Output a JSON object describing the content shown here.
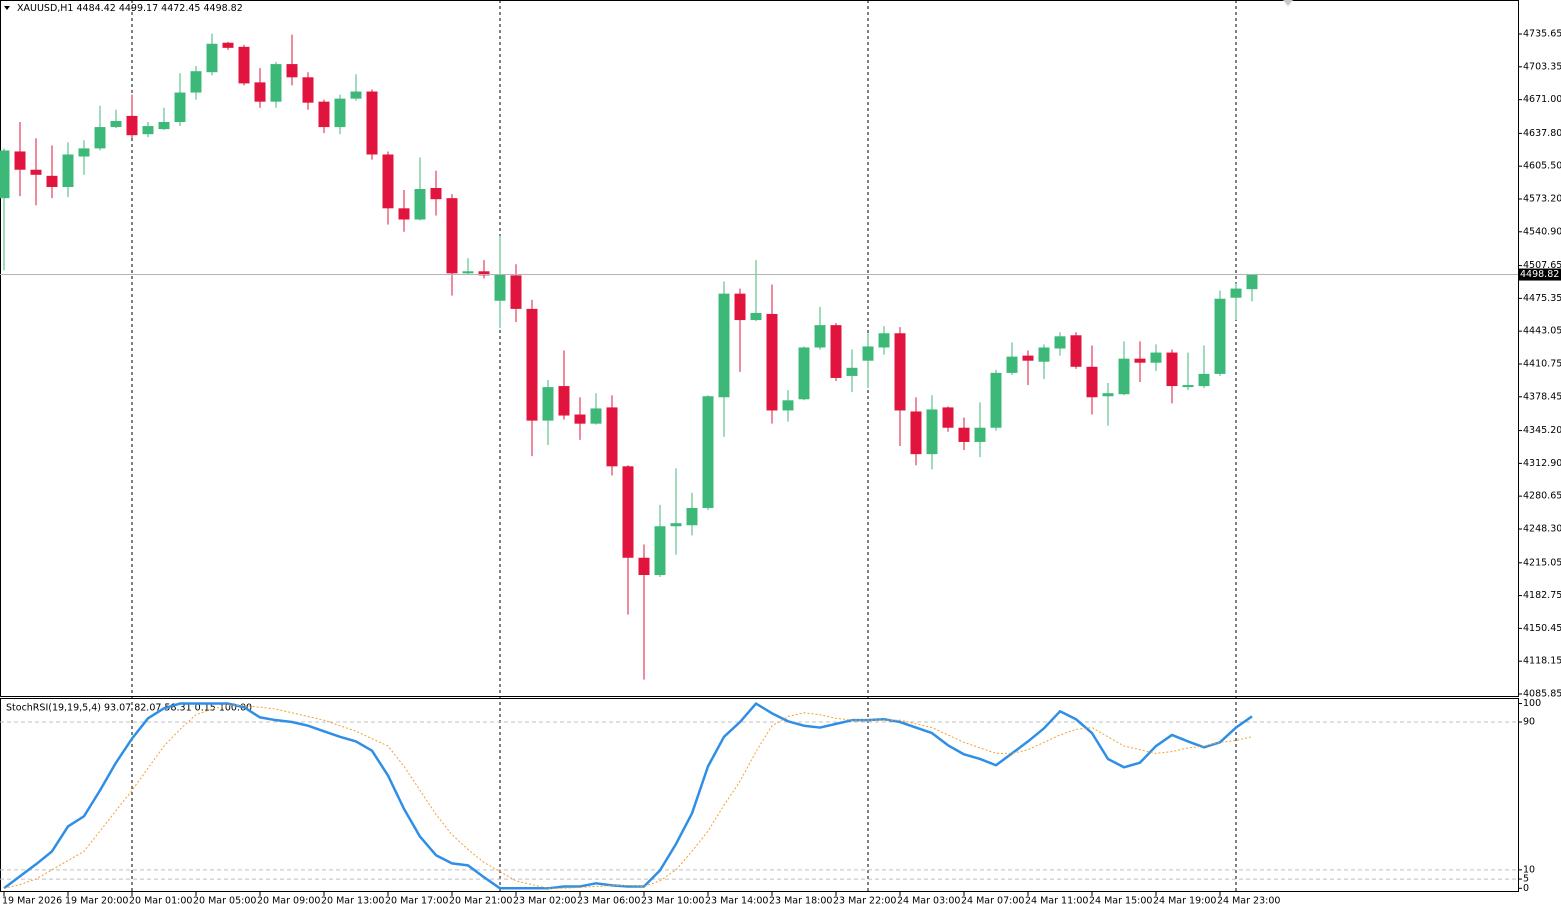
{
  "chart_data": [
    {
      "type": "candlestick",
      "symbol": "XAUUSD,H1",
      "categories": [
        "19 Mar 2026",
        null,
        null,
        null,
        "19 Mar 20:00",
        null,
        null,
        null,
        "20 Mar 01:00",
        null,
        null,
        null,
        "20 Mar 05:00",
        null,
        null,
        null,
        "20 Mar 09:00",
        null,
        null,
        null,
        "20 Mar 13:00",
        null,
        null,
        null,
        "20 Mar 17:00",
        null,
        null,
        null,
        "20 Mar 21:00",
        null,
        null,
        null,
        "23 Mar 02:00",
        null,
        null,
        null,
        "23 Mar 06:00",
        null,
        null,
        null,
        "23 Mar 10:00",
        null,
        null,
        null,
        "23 Mar 14:00",
        null,
        null,
        null,
        "23 Mar 18:00",
        null,
        null,
        null,
        "23 Mar 22:00",
        null,
        null,
        null,
        "24 Mar 03:00",
        null,
        null,
        null,
        "24 Mar 07:00",
        null,
        null,
        null,
        "24 Mar 11:00",
        null,
        null,
        null,
        "24 Mar 15:00",
        null,
        null,
        null,
        "24 Mar 19:00",
        null,
        null,
        null,
        "24 Mar 23:00",
        null,
        null
      ],
      "open": [
        4574,
        4620,
        4602,
        4596,
        4585,
        4615,
        4623,
        4644,
        4655,
        4637,
        4642,
        4649,
        4678,
        4698,
        4727,
        4723,
        4688,
        4669,
        4706,
        4693,
        4669,
        4644,
        4672,
        4679,
        4617,
        4564,
        4553,
        4584,
        4574,
        4500,
        4502,
        4473,
        4498,
        4465,
        4355,
        4389,
        4361,
        4352,
        4368,
        4310,
        4220,
        4203,
        4251,
        4252,
        4269,
        4378,
        4480,
        4454,
        4460,
        4365,
        4376,
        4427,
        4449,
        4399,
        4414,
        4427,
        4441,
        4364,
        4322,
        4368,
        4348,
        4334,
        4348,
        4402,
        4419,
        4413,
        4426,
        4439,
        4408,
        4379,
        4381,
        4416,
        4412,
        4422,
        4388,
        4389,
        4401,
        4476,
        4484.42
      ],
      "high": [
        4623,
        4649,
        4633,
        4626,
        4629,
        4631,
        4665,
        4661,
        4676,
        4649,
        4663,
        4697,
        4704,
        4736,
        4728,
        4725,
        4702,
        4708,
        4735,
        4698,
        4671,
        4676,
        4696,
        4681,
        4620,
        4582,
        4614,
        4601,
        4578,
        4515,
        4513,
        4537,
        4509,
        4474,
        4395,
        4424,
        4378,
        4382,
        4380,
        4311,
        4233,
        4272,
        4308,
        4284,
        4380,
        4492,
        4485,
        4513,
        4489,
        4385,
        4428,
        4467,
        4451,
        4425,
        4441,
        4448,
        4447,
        4378,
        4380,
        4369,
        4358,
        4373,
        4405,
        4432,
        4424,
        4430,
        4442,
        4442,
        4429,
        4392,
        4433,
        4433,
        4430,
        4425,
        4422,
        4429,
        4483,
        4490,
        4499.17
      ],
      "low": [
        4503,
        4576,
        4567,
        4574,
        4575,
        4597,
        4621,
        4643,
        4633,
        4634,
        4641,
        4645,
        4671,
        4695,
        4720,
        4685,
        4663,
        4663,
        4685,
        4661,
        4638,
        4637,
        4670,
        4612,
        4548,
        4541,
        4552,
        4557,
        4478,
        4499,
        4495,
        4446,
        4452,
        4320,
        4331,
        4356,
        4336,
        4351,
        4301,
        4164,
        4100,
        4201,
        4223,
        4242,
        4267,
        4339,
        4403,
        4453,
        4352,
        4354,
        4375,
        4425,
        4394,
        4383,
        4387,
        4420,
        4330,
        4311,
        4307,
        4344,
        4326,
        4319,
        4345,
        4400,
        4390,
        4396,
        4419,
        4406,
        4361,
        4350,
        4380,
        4393,
        4404,
        4372,
        4385,
        4387,
        4399,
        4454,
        4472.45
      ],
      "close": [
        4621,
        4602,
        4597,
        4585,
        4617,
        4623,
        4644,
        4650,
        4636,
        4645,
        4649,
        4678,
        4699,
        4726,
        4722,
        4687,
        4669,
        4706,
        4693,
        4668,
        4644,
        4672,
        4679,
        4617,
        4564,
        4553,
        4583,
        4573,
        4500,
        4502,
        4498,
        4499,
        4465,
        4355,
        4388,
        4360,
        4352,
        4367,
        4310,
        4220,
        4203,
        4251,
        4254,
        4269,
        4379,
        4480,
        4454,
        4461,
        4365,
        4375,
        4427,
        4449,
        4397,
        4407,
        4428,
        4441,
        4365,
        4322,
        4366,
        4348,
        4334,
        4348,
        4402,
        4418,
        4414,
        4427,
        4438,
        4408,
        4378,
        4382,
        4416,
        4412,
        4422,
        4389,
        4390,
        4401,
        4475,
        4485,
        4498.82
      ],
      "up_color": "#3cb878",
      "down_color": "#e0143c",
      "ylim": [
        4082.9,
        4769.1
      ],
      "yticks": [
        4735.65,
        4703.35,
        {
          "value": 4671.0,
          "label": "4671.00"
        },
        {
          "value": 4637.8,
          "label": "4637.80"
        },
        {
          "value": 4605.5,
          "label": "4605.50"
        },
        {
          "value": 4573.2,
          "label": "4573.20"
        },
        {
          "value": 4540.9,
          "label": "4540.90"
        },
        4507.65,
        4475.35,
        4443.05,
        4410.75,
        4378.45,
        {
          "value": 4345.2,
          "label": "4345.20"
        },
        {
          "value": 4312.9,
          "label": "4312.90"
        },
        4280.65,
        {
          "value": 4248.3,
          "label": "4248.30"
        },
        4215.05,
        4182.75,
        4150.45,
        4118.15,
        4085.85
      ]
    },
    {
      "type": "line",
      "title": "StochRSI(19,19,5,4) 93.07 82.07 58.31 0.15 100.00",
      "ylim": [
        -2,
        103
      ],
      "yticks": [
        100,
        90,
        10,
        5,
        0
      ],
      "series": [
        {
          "color": "#2f8ee5",
          "values": [
            0,
            6.5,
            13,
            20,
            33.5,
            39,
            53,
            68,
            81,
            92,
            97.4,
            100,
            100,
            100,
            100,
            98,
            92.5,
            91,
            90,
            88,
            85,
            82,
            79.5,
            74.5,
            61,
            43,
            28,
            17.9,
            13.5,
            12.4,
            6,
            0,
            0,
            0,
            0,
            1,
            1,
            2.7,
            1.6,
            1,
            1,
            9.7,
            24,
            40.6,
            66,
            82,
            90,
            100,
            94.7,
            90.4,
            88,
            87,
            89,
            91,
            91,
            91.5,
            90,
            87,
            84,
            77.4,
            72.5,
            70,
            66.6,
            73,
            79.5,
            86.6,
            95.8,
            91.5,
            84,
            70,
            65.5,
            68,
            77,
            83,
            79.5,
            76.3,
            79,
            87,
            93.07
          ]
        },
        {
          "color": "#f0a030",
          "dotted": true,
          "values": [
            0,
            2,
            5,
            10,
            15,
            20,
            31,
            42,
            53,
            65,
            77,
            86,
            94,
            97,
            99,
            99,
            98,
            97,
            95,
            93,
            91,
            88,
            85,
            81,
            77,
            66,
            53,
            40,
            29,
            21,
            14,
            9,
            4,
            2,
            0,
            0,
            0.5,
            1,
            1.5,
            1.5,
            1,
            4,
            10,
            20,
            31,
            45,
            58,
            74,
            88,
            93,
            95,
            94,
            92,
            91,
            91,
            91,
            91,
            89,
            87,
            83,
            79,
            76,
            73,
            73,
            75,
            79,
            83,
            86,
            87,
            82,
            77,
            75,
            73,
            74,
            76,
            77,
            79,
            80,
            82.07
          ]
        }
      ]
    }
  ]
}
